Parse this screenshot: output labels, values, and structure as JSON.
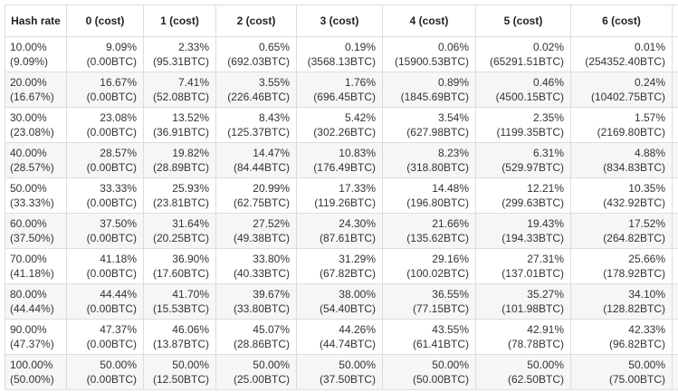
{
  "table": {
    "headers": [
      "Hash rate",
      "0 (cost)",
      "1 (cost)",
      "2 (cost)",
      "3 (cost)",
      "4 (cost)",
      "5 (cost)",
      "6 (cost)"
    ],
    "rows": [
      [
        [
          "10.00%",
          "(9.09%)"
        ],
        [
          "9.09%",
          "(0.00BTC)"
        ],
        [
          "2.33%",
          "(95.31BTC)"
        ],
        [
          "0.65%",
          "(692.03BTC)"
        ],
        [
          "0.19%",
          "(3568.13BTC)"
        ],
        [
          "0.06%",
          "(15900.53BTC)"
        ],
        [
          "0.02%",
          "(65291.51BTC)"
        ],
        [
          "0.01%",
          "(254352.40BTC)"
        ]
      ],
      [
        [
          "20.00%",
          "(16.67%)"
        ],
        [
          "16.67%",
          "(0.00BTC)"
        ],
        [
          "7.41%",
          "(52.08BTC)"
        ],
        [
          "3.55%",
          "(226.46BTC)"
        ],
        [
          "1.76%",
          "(696.45BTC)"
        ],
        [
          "0.89%",
          "(1845.69BTC)"
        ],
        [
          "0.46%",
          "(4500.15BTC)"
        ],
        [
          "0.24%",
          "(10402.75BTC)"
        ]
      ],
      [
        [
          "30.00%",
          "(23.08%)"
        ],
        [
          "23.08%",
          "(0.00BTC)"
        ],
        [
          "13.52%",
          "(36.91BTC)"
        ],
        [
          "8.43%",
          "(125.37BTC)"
        ],
        [
          "5.42%",
          "(302.26BTC)"
        ],
        [
          "3.54%",
          "(627.98BTC)"
        ],
        [
          "2.35%",
          "(1199.35BTC)"
        ],
        [
          "1.57%",
          "(2169.80BTC)"
        ]
      ],
      [
        [
          "40.00%",
          "(28.57%)"
        ],
        [
          "28.57%",
          "(0.00BTC)"
        ],
        [
          "19.82%",
          "(28.89BTC)"
        ],
        [
          "14.47%",
          "(84.44BTC)"
        ],
        [
          "10.83%",
          "(176.49BTC)"
        ],
        [
          "8.23%",
          "(318.80BTC)"
        ],
        [
          "6.31%",
          "(529.97BTC)"
        ],
        [
          "4.88%",
          "(834.83BTC)"
        ]
      ],
      [
        [
          "50.00%",
          "(33.33%)"
        ],
        [
          "33.33%",
          "(0.00BTC)"
        ],
        [
          "25.93%",
          "(23.81BTC)"
        ],
        [
          "20.99%",
          "(62.75BTC)"
        ],
        [
          "17.33%",
          "(119.26BTC)"
        ],
        [
          "14.48%",
          "(196.80BTC)"
        ],
        [
          "12.21%",
          "(299.63BTC)"
        ],
        [
          "10.35%",
          "(432.92BTC)"
        ]
      ],
      [
        [
          "60.00%",
          "(37.50%)"
        ],
        [
          "37.50%",
          "(0.00BTC)"
        ],
        [
          "31.64%",
          "(20.25BTC)"
        ],
        [
          "27.52%",
          "(49.38BTC)"
        ],
        [
          "24.30%",
          "(87.61BTC)"
        ],
        [
          "21.66%",
          "(135.62BTC)"
        ],
        [
          "19.43%",
          "(194.33BTC)"
        ],
        [
          "17.52%",
          "(264.82BTC)"
        ]
      ],
      [
        [
          "70.00%",
          "(41.18%)"
        ],
        [
          "41.18%",
          "(0.00BTC)"
        ],
        [
          "36.90%",
          "(17.60BTC)"
        ],
        [
          "33.80%",
          "(40.33BTC)"
        ],
        [
          "31.29%",
          "(67.82BTC)"
        ],
        [
          "29.16%",
          "(100.02BTC)"
        ],
        [
          "27.31%",
          "(137.01BTC)"
        ],
        [
          "25.66%",
          "(178.92BTC)"
        ]
      ],
      [
        [
          "80.00%",
          "(44.44%)"
        ],
        [
          "44.44%",
          "(0.00BTC)"
        ],
        [
          "41.70%",
          "(15.53BTC)"
        ],
        [
          "39.67%",
          "(33.80BTC)"
        ],
        [
          "38.00%",
          "(54.40BTC)"
        ],
        [
          "36.55%",
          "(77.15BTC)"
        ],
        [
          "35.27%",
          "(101.98BTC)"
        ],
        [
          "34.10%",
          "(128.82BTC)"
        ]
      ],
      [
        [
          "90.00%",
          "(47.37%)"
        ],
        [
          "47.37%",
          "(0.00BTC)"
        ],
        [
          "46.06%",
          "(13.87BTC)"
        ],
        [
          "45.07%",
          "(28.86BTC)"
        ],
        [
          "44.26%",
          "(44.74BTC)"
        ],
        [
          "43.55%",
          "(61.41BTC)"
        ],
        [
          "42.91%",
          "(78.78BTC)"
        ],
        [
          "42.33%",
          "(96.82BTC)"
        ]
      ],
      [
        [
          "100.00%",
          "(50.00%)"
        ],
        [
          "50.00%",
          "(0.00BTC)"
        ],
        [
          "50.00%",
          "(12.50BTC)"
        ],
        [
          "50.00%",
          "(25.00BTC)"
        ],
        [
          "50.00%",
          "(37.50BTC)"
        ],
        [
          "50.00%",
          "(50.00BTC)"
        ],
        [
          "50.00%",
          "(62.50BTC)"
        ],
        [
          "50.00%",
          "(75.00BTC)"
        ]
      ]
    ]
  }
}
